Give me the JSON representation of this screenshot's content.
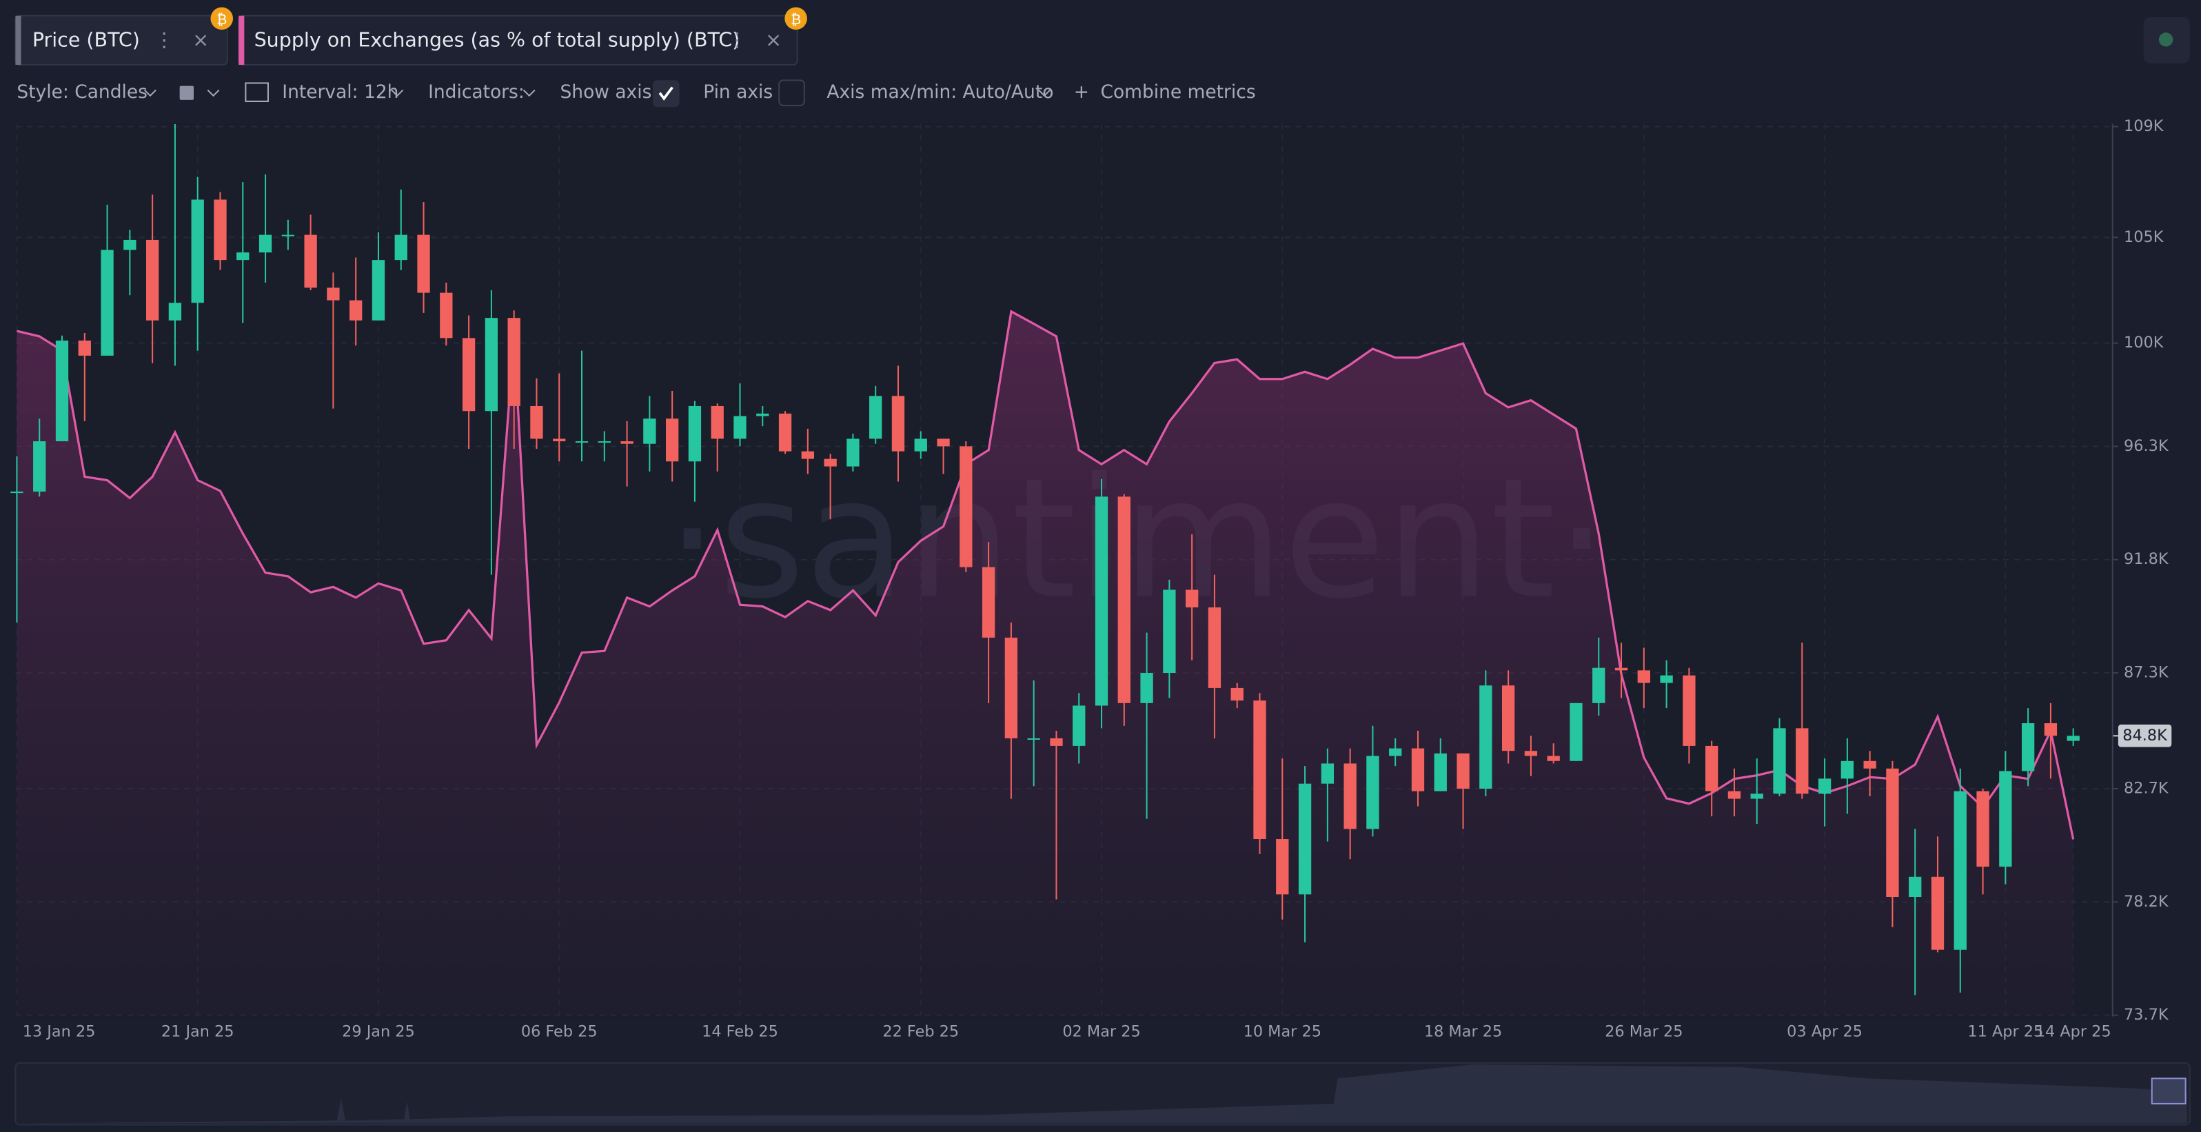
{
  "chart_data": {
    "type": "candlestick",
    "toolbar": {
      "style": "Style: Candles",
      "interval": "Interval: 12h",
      "indicators": "Indicators:",
      "show_axis": "Show axis",
      "pin_axis": "Pin axis",
      "axis_range": "Axis max/min: Auto/Auto",
      "combine": "Combine metrics"
    },
    "watermark": "·santiment·",
    "x": [
      "2025-01-13",
      "2025-01-14",
      "2025-01-15",
      "2025-01-16",
      "2025-01-17",
      "2025-01-18",
      "2025-01-19",
      "2025-01-20",
      "2025-01-21",
      "2025-01-22",
      "2025-01-23",
      "2025-01-24",
      "2025-01-25",
      "2025-01-26",
      "2025-01-27",
      "2025-01-28",
      "2025-01-29",
      "2025-01-30",
      "2025-01-31",
      "2025-02-01",
      "2025-02-02",
      "2025-02-03",
      "2025-02-04",
      "2025-02-05",
      "2025-02-06",
      "2025-02-07",
      "2025-02-08",
      "2025-02-09",
      "2025-02-10",
      "2025-02-11",
      "2025-02-12",
      "2025-02-13",
      "2025-02-14",
      "2025-02-15",
      "2025-02-16",
      "2025-02-17",
      "2025-02-18",
      "2025-02-19",
      "2025-02-20",
      "2025-02-21",
      "2025-02-22",
      "2025-02-23",
      "2025-02-24",
      "2025-02-25",
      "2025-02-26",
      "2025-02-27",
      "2025-02-28",
      "2025-03-01",
      "2025-03-02",
      "2025-03-03",
      "2025-03-04",
      "2025-03-05",
      "2025-03-06",
      "2025-03-07",
      "2025-03-08",
      "2025-03-09",
      "2025-03-10",
      "2025-03-11",
      "2025-03-12",
      "2025-03-13",
      "2025-03-14",
      "2025-03-15",
      "2025-03-16",
      "2025-03-17",
      "2025-03-18",
      "2025-03-19",
      "2025-03-20",
      "2025-03-21",
      "2025-03-22",
      "2025-03-23",
      "2025-03-24",
      "2025-03-25",
      "2025-03-26",
      "2025-03-27",
      "2025-03-28",
      "2025-03-29",
      "2025-03-30",
      "2025-03-31",
      "2025-04-01",
      "2025-04-02",
      "2025-04-03",
      "2025-04-04",
      "2025-04-05",
      "2025-04-06",
      "2025-04-07",
      "2025-04-08",
      "2025-04-09",
      "2025-04-10",
      "2025-04-11",
      "2025-04-12",
      "2025-04-13",
      "2025-04-14"
    ],
    "xlim": [
      "2025-01-13",
      "2025-04-14"
    ],
    "xticks": [
      {
        "value": "2025-01-13",
        "label": "13 Jan 25"
      },
      {
        "value": "2025-01-21",
        "label": "21 Jan 25"
      },
      {
        "value": "2025-01-29",
        "label": "29 Jan 25"
      },
      {
        "value": "2025-02-06",
        "label": "06 Feb 25"
      },
      {
        "value": "2025-02-14",
        "label": "14 Feb 25"
      },
      {
        "value": "2025-02-22",
        "label": "22 Feb 25"
      },
      {
        "value": "2025-03-02",
        "label": "02 Mar 25"
      },
      {
        "value": "2025-03-10",
        "label": "10 Mar 25"
      },
      {
        "value": "2025-03-18",
        "label": "18 Mar 25"
      },
      {
        "value": "2025-03-26",
        "label": "26 Mar 25"
      },
      {
        "value": "2025-04-03",
        "label": "03 Apr 25"
      },
      {
        "value": "2025-04-11",
        "label": "11 Apr 25"
      },
      {
        "value": "2025-04-14",
        "label": "14 Apr 25"
      }
    ],
    "ylim": [
      73700,
      109000
    ],
    "yticks": [
      {
        "value": 73700,
        "label": "73.7K"
      },
      {
        "value": 78200,
        "label": "78.2K"
      },
      {
        "value": 82700,
        "label": "82.7K"
      },
      {
        "value": 87300,
        "label": "87.3K"
      },
      {
        "value": 91800,
        "label": "91.8K"
      },
      {
        "value": 96300,
        "label": "96.3K"
      },
      {
        "value": 100400,
        "label": "100K"
      },
      {
        "value": 104600,
        "label": "105K"
      },
      {
        "value": 109000,
        "label": "109K"
      }
    ],
    "y2lim": [
      7.0,
      7.5
    ],
    "grid": true,
    "log_scale": false,
    "last_price": {
      "value": 84800,
      "label": "84.8K"
    },
    "series": [
      {
        "name": "Price (BTC)",
        "type": "candlestick",
        "up_color": "#26c6a0",
        "down_color": "#f2625e",
        "tab_color": "#6b6f7e",
        "open": [
          94500,
          94500,
          96500,
          100500,
          99900,
          104100,
          104500,
          101300,
          102000,
          106100,
          103700,
          104000,
          104700,
          104700,
          102600,
          102100,
          101300,
          103700,
          104700,
          102400,
          100600,
          97700,
          101400,
          97900,
          96600,
          96500,
          96500,
          96500,
          96400,
          97400,
          95700,
          97900,
          96600,
          97500,
          97600,
          96100,
          95800,
          95500,
          96600,
          98300,
          96100,
          96600,
          96300,
          91500,
          88700,
          84700,
          84700,
          84400,
          86000,
          94300,
          86100,
          87300,
          90600,
          89900,
          86700,
          86200,
          80700,
          78500,
          82900,
          83700,
          81100,
          84000,
          84300,
          82600,
          84100,
          82700,
          86800,
          84200,
          84000,
          83800,
          86100,
          87500,
          87400,
          86900,
          87200,
          84400,
          82600,
          82300,
          82500,
          85100,
          82500,
          83100,
          83800,
          83500,
          78400,
          79200,
          76300,
          82600,
          79600,
          83400,
          85300,
          84600
        ],
        "high": [
          95900,
          97400,
          100700,
          100800,
          105900,
          104900,
          106300,
          109100,
          107000,
          106400,
          106800,
          107100,
          105300,
          105500,
          103200,
          103800,
          104800,
          106500,
          106000,
          102800,
          101500,
          102500,
          101700,
          99000,
          99200,
          100100,
          96900,
          97300,
          98300,
          98500,
          98100,
          98000,
          98800,
          97900,
          97700,
          97000,
          96000,
          96800,
          98700,
          99500,
          96900,
          96600,
          96500,
          92500,
          89300,
          87000,
          85000,
          86500,
          95000,
          94400,
          88900,
          91000,
          92800,
          91200,
          86900,
          86500,
          83900,
          83600,
          84300,
          84300,
          85200,
          84700,
          85000,
          84700,
          84100,
          87400,
          87400,
          84800,
          84500,
          86100,
          88700,
          88500,
          88300,
          87800,
          87500,
          84600,
          83500,
          83900,
          85500,
          88500,
          83900,
          84700,
          84200,
          83800,
          81100,
          80800,
          83500,
          82700,
          84200,
          85900,
          86100,
          85100
        ],
        "low": [
          89300,
          94300,
          96500,
          97300,
          99900,
          102300,
          99600,
          99500,
          100100,
          103300,
          101200,
          102800,
          104100,
          102500,
          97800,
          100300,
          101300,
          103300,
          101600,
          100300,
          96200,
          91200,
          96200,
          96200,
          95700,
          95700,
          95700,
          94700,
          95300,
          94900,
          94100,
          95300,
          96300,
          97100,
          96000,
          95200,
          93400,
          95300,
          96400,
          94900,
          95800,
          95200,
          91300,
          86100,
          82300,
          82800,
          78300,
          83700,
          85100,
          85200,
          81500,
          86300,
          87800,
          84700,
          85900,
          80100,
          77500,
          76600,
          80600,
          79900,
          80800,
          83600,
          82000,
          82600,
          81100,
          82400,
          83700,
          83200,
          83700,
          83800,
          85600,
          86300,
          85900,
          85900,
          83700,
          81600,
          81600,
          81300,
          82400,
          82300,
          81200,
          81700,
          82400,
          77200,
          74500,
          76200,
          74600,
          78500,
          78900,
          82800,
          83100,
          84400
        ],
        "close": [
          94500,
          96500,
          100500,
          99900,
          104100,
          104500,
          101300,
          102000,
          106100,
          103700,
          104000,
          104700,
          104700,
          102600,
          102100,
          101300,
          103700,
          104700,
          102400,
          100600,
          97700,
          101400,
          97900,
          96600,
          96500,
          96500,
          96500,
          96400,
          97400,
          95700,
          97900,
          96600,
          97500,
          97600,
          96100,
          95800,
          95500,
          96600,
          98300,
          96100,
          96600,
          96300,
          91500,
          88700,
          84700,
          84700,
          84400,
          86000,
          94300,
          86100,
          87300,
          90600,
          89900,
          86700,
          86200,
          80700,
          78500,
          82900,
          83700,
          81100,
          84000,
          84300,
          82600,
          84100,
          82700,
          86800,
          84200,
          84000,
          83800,
          86100,
          87500,
          87400,
          86900,
          87200,
          84400,
          82600,
          82300,
          82500,
          85100,
          82500,
          83100,
          83800,
          83500,
          78400,
          79200,
          76300,
          82600,
          79600,
          83400,
          85300,
          84800,
          84800
        ]
      },
      {
        "name": "Supply on Exchanges (as % of total supply) (BTC)",
        "type": "area",
        "axis": "y2",
        "color": "#e05aa6",
        "values": [
          7.385,
          7.382,
          7.374,
          7.303,
          7.301,
          7.291,
          7.303,
          7.328,
          7.301,
          7.295,
          7.271,
          7.249,
          7.247,
          7.238,
          7.241,
          7.235,
          7.243,
          7.239,
          7.209,
          7.211,
          7.228,
          7.212,
          7.382,
          7.152,
          7.176,
          7.204,
          7.205,
          7.235,
          7.23,
          7.239,
          7.247,
          7.273,
          7.231,
          7.23,
          7.224,
          7.233,
          7.228,
          7.239,
          7.225,
          7.255,
          7.267,
          7.275,
          7.31,
          7.318,
          7.396,
          7.389,
          7.382,
          7.318,
          7.31,
          7.318,
          7.31,
          7.334,
          7.35,
          7.367,
          7.369,
          7.358,
          7.358,
          7.362,
          7.358,
          7.366,
          7.375,
          7.37,
          7.37,
          7.374,
          7.378,
          7.35,
          7.342,
          7.346,
          7.338,
          7.33,
          7.271,
          7.192,
          7.145,
          7.122,
          7.119,
          7.125,
          7.133,
          7.135,
          7.138,
          7.129,
          7.125,
          7.129,
          7.134,
          7.133,
          7.141,
          7.168,
          7.129,
          7.117,
          7.135,
          7.133,
          7.16,
          7.099
        ]
      }
    ]
  }
}
